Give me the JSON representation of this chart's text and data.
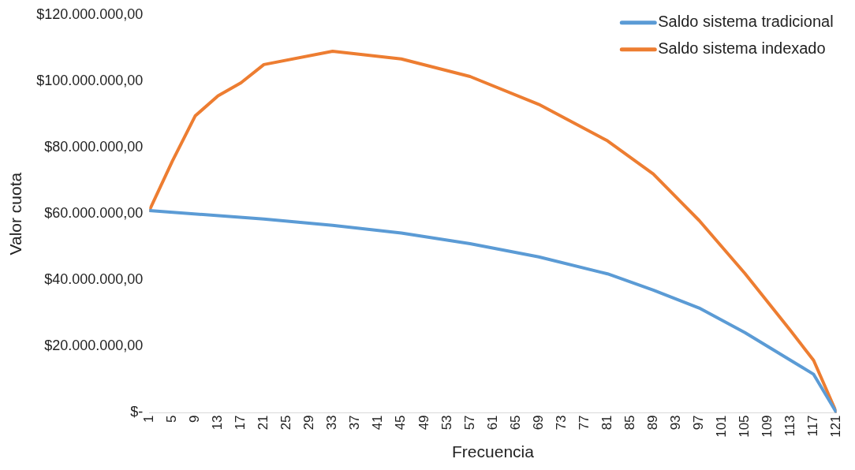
{
  "chart_data": {
    "type": "line",
    "xlabel": "Frecuencia",
    "ylabel": "Valor cuota",
    "xlim": [
      1,
      121
    ],
    "xticks": [
      1,
      5,
      9,
      13,
      17,
      21,
      25,
      29,
      33,
      37,
      41,
      45,
      49,
      53,
      57,
      61,
      65,
      69,
      73,
      77,
      81,
      85,
      89,
      93,
      97,
      101,
      105,
      109,
      113,
      117,
      121
    ],
    "ylim": [
      0,
      120000000
    ],
    "yticks": [
      {
        "value": 0,
        "label": "$-"
      },
      {
        "value": 20000000,
        "label": "$20.000.000,00"
      },
      {
        "value": 40000000,
        "label": "$40.000.000,00"
      },
      {
        "value": 60000000,
        "label": "$60.000.000,00"
      },
      {
        "value": 80000000,
        "label": "$80.000.000,00"
      },
      {
        "value": 100000000,
        "label": "$100.000.000,00"
      },
      {
        "value": 120000000,
        "label": "$120.000.000,00"
      }
    ],
    "grid": false,
    "legend": "top right",
    "marker": "none",
    "line_style": "solid",
    "series": [
      {
        "name": "Saldo sistema tradicional",
        "color": "#5b9bd5",
        "x": [
          1,
          21,
          33,
          45,
          57,
          69,
          81,
          89,
          97,
          105,
          113,
          117,
          121
        ],
        "values": [
          61000000,
          58400000,
          56500000,
          54200000,
          51000000,
          47000000,
          41900000,
          37000000,
          31600000,
          24200000,
          15800000,
          11600000,
          0
        ]
      },
      {
        "name": "Saldo sistema indexado",
        "color": "#ed7d31",
        "x": [
          1,
          5,
          9,
          13,
          17,
          21,
          33,
          45,
          57,
          69,
          81,
          89,
          97,
          105,
          113,
          117,
          121
        ],
        "values": [
          61000000,
          75800000,
          89500000,
          95600000,
          99500000,
          105000000,
          109000000,
          106700000,
          101400000,
          93000000,
          82000000,
          72000000,
          58000000,
          42000000,
          24700000,
          15800000,
          0
        ]
      }
    ]
  }
}
